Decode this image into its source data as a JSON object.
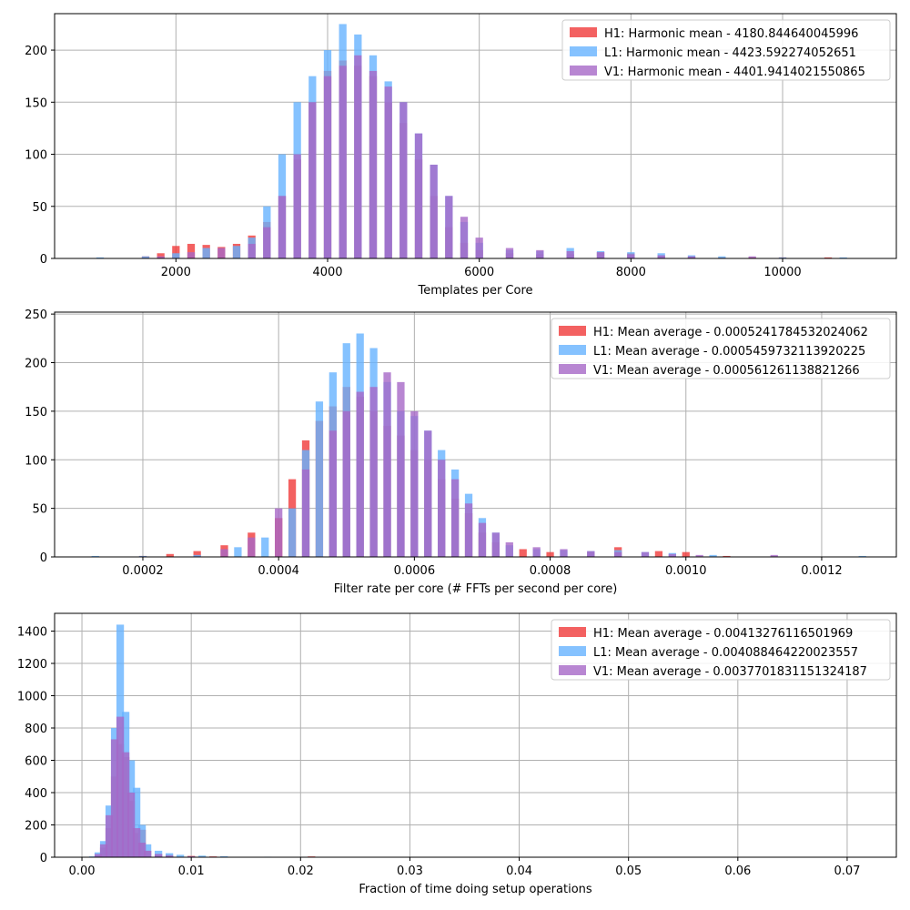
{
  "chart_data": [
    {
      "type": "bar",
      "xlabel": "Templates per Core",
      "ylabel": "",
      "xlim": [
        400,
        11500
      ],
      "ylim": [
        0,
        235
      ],
      "xticks": [
        2000,
        4000,
        6000,
        8000,
        10000
      ],
      "yticks": [
        0,
        50,
        100,
        150,
        200
      ],
      "grid": true,
      "legend_position": "top-right",
      "series": [
        {
          "name": "H1: Harmonic mean  - 4180.844640045996",
          "color": "#f03a3a",
          "x": [
            1600,
            1800,
            2000,
            2200,
            2400,
            2600,
            2800,
            3000,
            3200,
            3400,
            3600,
            3800,
            4000,
            4200,
            4400,
            4600,
            4800,
            5000,
            5200,
            5400,
            5600,
            5800,
            6000,
            6400,
            6800,
            7200,
            7600,
            8000,
            8400,
            8800,
            9200,
            9600,
            10000,
            10600
          ],
          "y": [
            2,
            5,
            12,
            14,
            13,
            11,
            14,
            22,
            35,
            60,
            95,
            150,
            180,
            190,
            185,
            175,
            150,
            130,
            95,
            60,
            30,
            15,
            8,
            5,
            4,
            4,
            6,
            5,
            3,
            2,
            1,
            1,
            1,
            1
          ]
        },
        {
          "name": "L1: Harmonic mean  - 4423.592274052651",
          "color": "#66b3ff",
          "x": [
            1000,
            1600,
            2000,
            2400,
            2800,
            3000,
            3200,
            3400,
            3600,
            3800,
            4000,
            4200,
            4400,
            4600,
            4800,
            5000,
            5200,
            5400,
            5600,
            5800,
            6000,
            6400,
            6800,
            7200,
            7600,
            8000,
            8400,
            8800,
            9200,
            10000,
            10800
          ],
          "y": [
            1,
            2,
            5,
            10,
            12,
            20,
            50,
            100,
            150,
            175,
            200,
            225,
            215,
            195,
            170,
            150,
            120,
            90,
            60,
            35,
            15,
            8,
            7,
            10,
            7,
            6,
            5,
            3,
            2,
            1,
            1
          ]
        },
        {
          "name": "V1: Harmonic mean  - 4401.9414021550865",
          "color": "#a668c7",
          "x": [
            1800,
            2200,
            2600,
            3000,
            3200,
            3400,
            3600,
            3800,
            4000,
            4200,
            4400,
            4600,
            4800,
            5000,
            5200,
            5400,
            5600,
            5800,
            6000,
            6400,
            6800,
            7200,
            7600,
            8000,
            8400,
            8800,
            9600
          ],
          "y": [
            2,
            6,
            10,
            14,
            30,
            60,
            100,
            150,
            175,
            185,
            195,
            180,
            165,
            150,
            120,
            90,
            60,
            40,
            20,
            10,
            8,
            7,
            6,
            4,
            3,
            2,
            2
          ]
        }
      ]
    },
    {
      "type": "bar",
      "xlabel": "Filter rate per core (# FFTs per second per core)",
      "ylabel": "",
      "xlim": [
        7e-05,
        0.00131
      ],
      "ylim": [
        0,
        252
      ],
      "xticks": [
        0.0002,
        0.0004,
        0.0006,
        0.0008,
        0.001,
        0.0012
      ],
      "xtick_labels": [
        "0.0002",
        "0.0004",
        "0.0006",
        "0.0008",
        "0.0010",
        "0.0012"
      ],
      "yticks": [
        0,
        50,
        100,
        150,
        200,
        250
      ],
      "grid": true,
      "legend_position": "top-right",
      "series": [
        {
          "name": "H1: Mean average - 0.0005241784532024062",
          "color": "#f03a3a",
          "x": [
            0.0002,
            0.00024,
            0.00028,
            0.00032,
            0.00036,
            0.0004,
            0.00042,
            0.00044,
            0.00046,
            0.00048,
            0.0005,
            0.00052,
            0.00054,
            0.00056,
            0.00058,
            0.0006,
            0.00062,
            0.00064,
            0.00066,
            0.00068,
            0.0007,
            0.00072,
            0.00076,
            0.0008,
            0.00086,
            0.0009,
            0.00096,
            0.001,
            0.00106
          ],
          "y": [
            1,
            3,
            6,
            12,
            25,
            40,
            80,
            120,
            140,
            155,
            175,
            165,
            150,
            135,
            125,
            110,
            100,
            80,
            60,
            45,
            25,
            15,
            8,
            5,
            5,
            10,
            6,
            5,
            1
          ]
        },
        {
          "name": "L1: Mean average - 0.0005459732113920225",
          "color": "#66b3ff",
          "x": [
            0.00013,
            0.0002,
            0.00028,
            0.00034,
            0.00038,
            0.00042,
            0.00044,
            0.00046,
            0.00048,
            0.0005,
            0.00052,
            0.00054,
            0.00056,
            0.00058,
            0.0006,
            0.00062,
            0.00064,
            0.00066,
            0.00068,
            0.0007,
            0.00072,
            0.00074,
            0.00078,
            0.00082,
            0.00086,
            0.0009,
            0.00094,
            0.00098,
            0.00104,
            0.00126
          ],
          "y": [
            1,
            1,
            2,
            10,
            20,
            50,
            110,
            160,
            190,
            220,
            230,
            215,
            180,
            150,
            145,
            130,
            110,
            90,
            65,
            40,
            25,
            12,
            8,
            7,
            6,
            7,
            5,
            4,
            2,
            1
          ]
        },
        {
          "name": "V1: Mean average - 0.000561261138821266",
          "color": "#a668c7",
          "x": [
            0.00032,
            0.00036,
            0.0004,
            0.00044,
            0.00048,
            0.0005,
            0.00052,
            0.00054,
            0.00056,
            0.00058,
            0.0006,
            0.00062,
            0.00064,
            0.00066,
            0.00068,
            0.0007,
            0.00072,
            0.00074,
            0.00078,
            0.00082,
            0.00086,
            0.0009,
            0.00094,
            0.00098,
            0.00102,
            0.00113
          ],
          "y": [
            8,
            20,
            50,
            90,
            130,
            150,
            170,
            175,
            190,
            180,
            150,
            130,
            100,
            80,
            55,
            35,
            25,
            15,
            10,
            8,
            6,
            5,
            5,
            3,
            2,
            2
          ]
        }
      ]
    },
    {
      "type": "bar",
      "xlabel": "Fraction of time doing setup operations",
      "ylabel": "",
      "xlim": [
        -0.0025,
        0.0745
      ],
      "ylim": [
        0,
        1510
      ],
      "xticks": [
        0,
        0.01,
        0.02,
        0.03,
        0.04,
        0.05,
        0.06,
        0.07
      ],
      "xtick_labels": [
        "0.00",
        "0.01",
        "0.02",
        "0.03",
        "0.04",
        "0.05",
        "0.06",
        "0.07"
      ],
      "yticks": [
        0,
        200,
        400,
        600,
        800,
        1000,
        1200,
        1400
      ],
      "grid": true,
      "legend_position": "top-right",
      "series": [
        {
          "name": "H1: Mean average - 0.00413276116501969",
          "color": "#f03a3a",
          "x": [
            0.0015,
            0.002,
            0.0025,
            0.003,
            0.0035,
            0.004,
            0.0045,
            0.005,
            0.0055,
            0.006,
            0.007,
            0.008,
            0.01,
            0.012,
            0.021
          ],
          "y": [
            10,
            60,
            180,
            500,
            700,
            620,
            350,
            150,
            170,
            40,
            20,
            15,
            8,
            5,
            5
          ]
        },
        {
          "name": "L1: Mean average - 0.004088464220023557",
          "color": "#66b3ff",
          "x": [
            0.001,
            0.0015,
            0.002,
            0.0025,
            0.003,
            0.0035,
            0.004,
            0.0045,
            0.005,
            0.0055,
            0.006,
            0.007,
            0.008,
            0.009,
            0.011,
            0.013,
            0.017,
            0.045
          ],
          "y": [
            5,
            30,
            100,
            320,
            800,
            1440,
            900,
            600,
            430,
            200,
            80,
            40,
            25,
            15,
            10,
            6,
            3,
            2
          ]
        },
        {
          "name": "V1: Mean average - 0.0037701831151324187",
          "color": "#a668c7",
          "x": [
            0.0015,
            0.002,
            0.0025,
            0.003,
            0.0035,
            0.004,
            0.0045,
            0.005,
            0.0055,
            0.006,
            0.007,
            0.008,
            0.01,
            0.012
          ],
          "y": [
            20,
            80,
            260,
            730,
            870,
            650,
            400,
            180,
            90,
            40,
            20,
            10,
            6,
            3
          ]
        }
      ]
    }
  ]
}
